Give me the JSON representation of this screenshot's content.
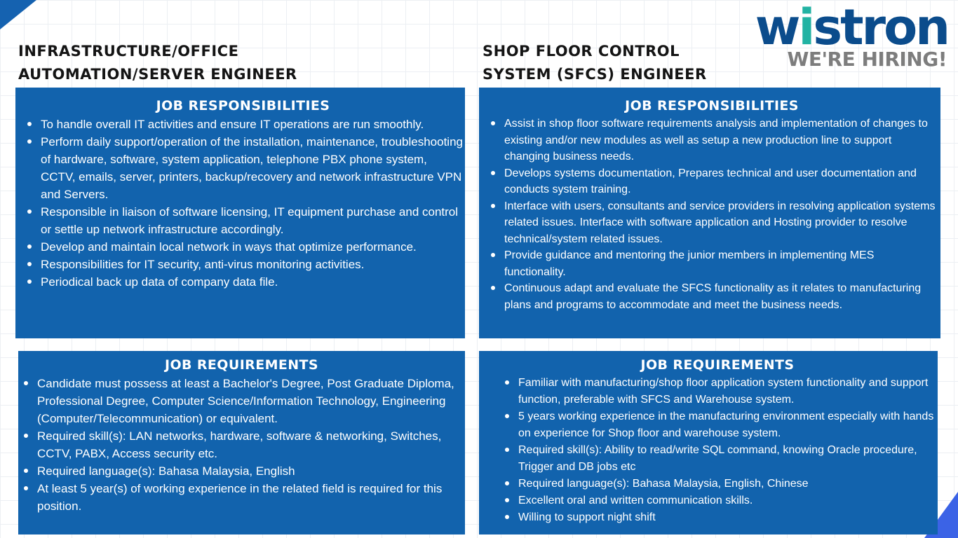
{
  "brand": {
    "logo_text": "wistron",
    "tagline": "WE'RE HIRING!",
    "colors": {
      "logo": "#0b4c8c",
      "accent_teal": "#22b3a3",
      "panel": "#1263ad",
      "tagline": "#7d7d7d",
      "corner_tl": "#1562b0",
      "corner_br": "#3b63e6"
    }
  },
  "left": {
    "title_line1": "INFRASTRUCTURE/OFFICE",
    "title_line2": "AUTOMATION/SERVER ENGINEER",
    "responsibilities": {
      "heading": "JOB RESPONSIBILITIES",
      "items": [
        "To handle overall IT activities and ensure IT operations are run smoothly.",
        "Perform daily support/operation of the installation, maintenance, troubleshooting of hardware, software, system application, telephone PBX phone system, CCTV, emails, server, printers, backup/recovery and network infrastructure VPN and Servers.",
        "Responsible in liaison of software licensing, IT equipment purchase and control or settle up network infrastructure accordingly.",
        "Develop and maintain local network in ways that optimize performance.",
        "Responsibilities for IT security, anti-virus monitoring activities.",
        "Periodical back up data of company data file."
      ]
    },
    "requirements": {
      "heading": "JOB REQUIREMENTS",
      "items": [
        "Candidate must possess at least a Bachelor's Degree, Post Graduate Diploma, Professional Degree, Computer Science/Information Technology, Engineering (Computer/Telecommunication) or equivalent.",
        "Required skill(s): LAN networks, hardware, software & networking, Switches, CCTV, PABX, Access security etc.",
        "Required language(s): Bahasa Malaysia, English",
        "At least 5 year(s) of working experience in the related field is required for this position."
      ]
    }
  },
  "right": {
    "title_line1": "SHOP FLOOR CONTROL",
    "title_line2": "SYSTEM (SFCS) ENGINEER",
    "responsibilities": {
      "heading": "JOB RESPONSIBILITIES",
      "items": [
        "Assist in shop floor software requirements analysis and implementation of changes to existing and/or new modules as well as setup a new production line to support changing business needs.",
        "Develops systems documentation, Prepares technical and user documentation and conducts system training.",
        "Interface with users, consultants and service providers in resolving application systems related issues. Interface with software application and Hosting provider to resolve technical/system related issues.",
        "Provide guidance and mentoring the junior members in implementing MES functionality.",
        "Continuous adapt and evaluate the SFCS functionality as it relates to manufacturing plans and programs to accommodate and meet the business needs."
      ]
    },
    "requirements": {
      "heading": "JOB REQUIREMENTS",
      "items": [
        "Familiar with manufacturing/shop floor application system functionality and support function, preferable with SFCS and Warehouse system.",
        "5 years working experience in the manufacturing environment especially with hands on experience for Shop floor and warehouse system.",
        "Required skill(s): Ability to read/write SQL command, knowing Oracle procedure, Trigger and DB jobs etc",
        "Required language(s): Bahasa Malaysia, English, Chinese",
        "Excellent oral and written communication skills.",
        "Willing to support night shift"
      ]
    }
  }
}
